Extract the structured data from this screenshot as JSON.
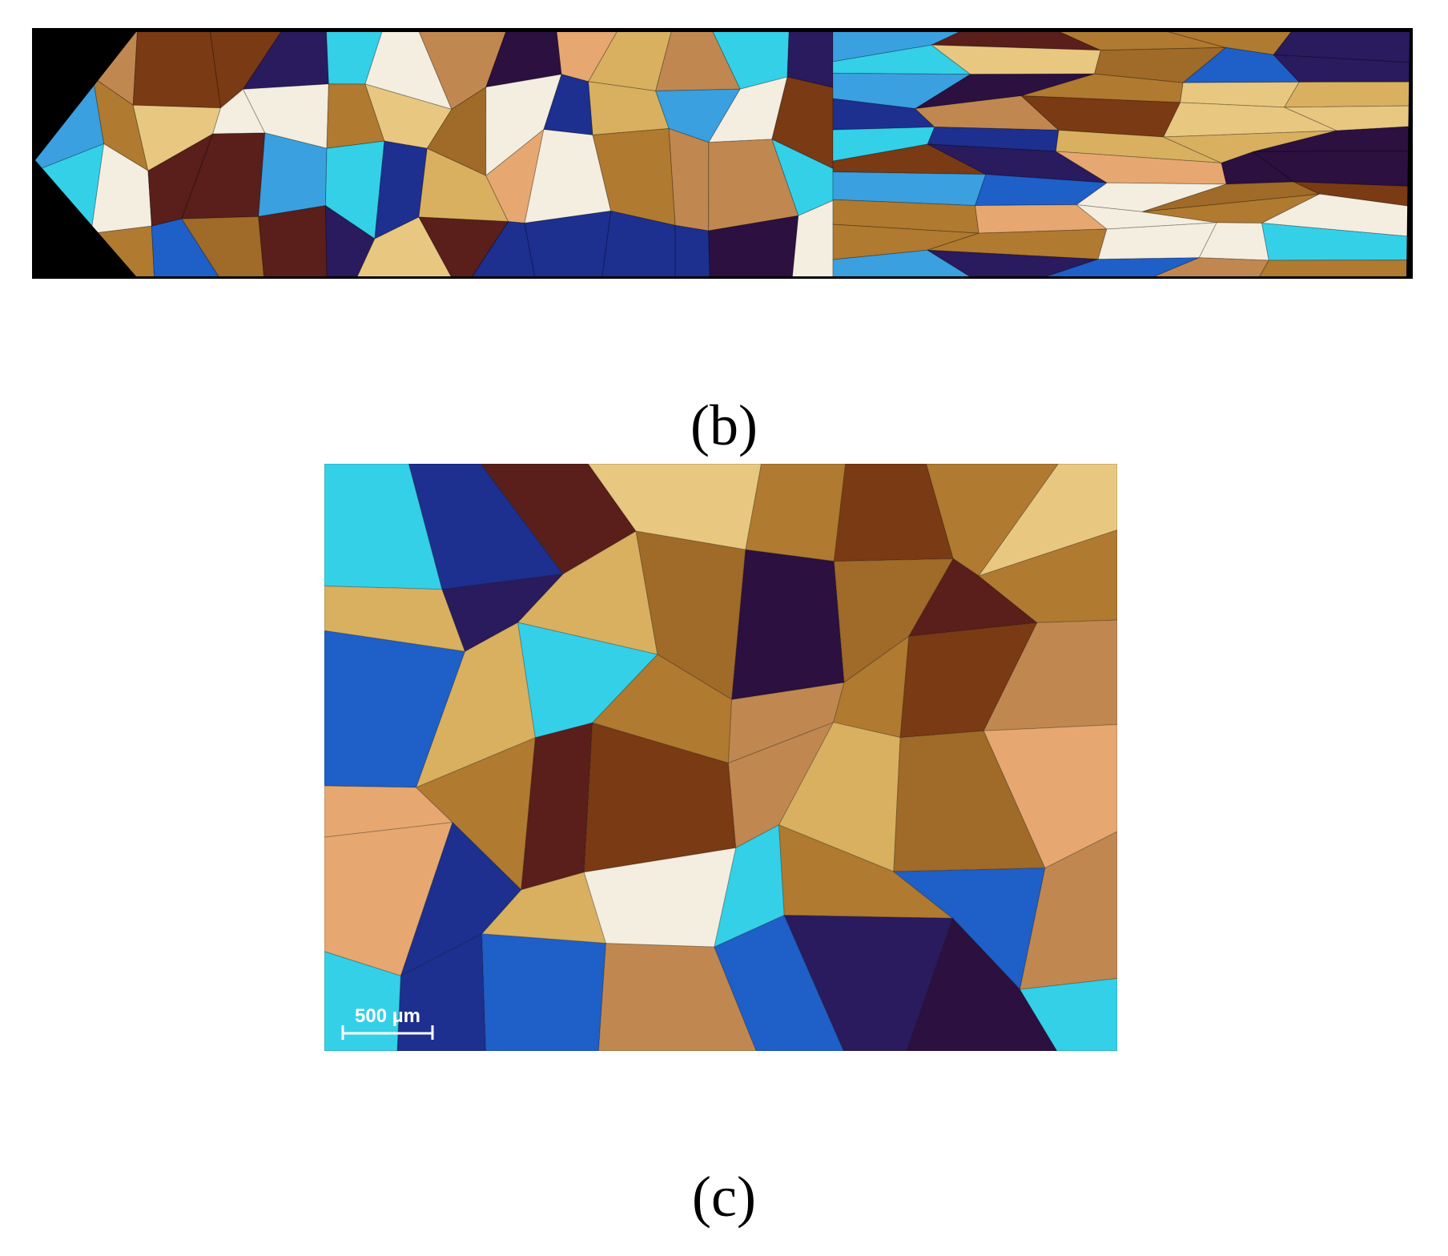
{
  "panels": [
    {
      "label": "(b)"
    },
    {
      "label": "(c)",
      "scale_bar": "500 µm"
    }
  ]
}
